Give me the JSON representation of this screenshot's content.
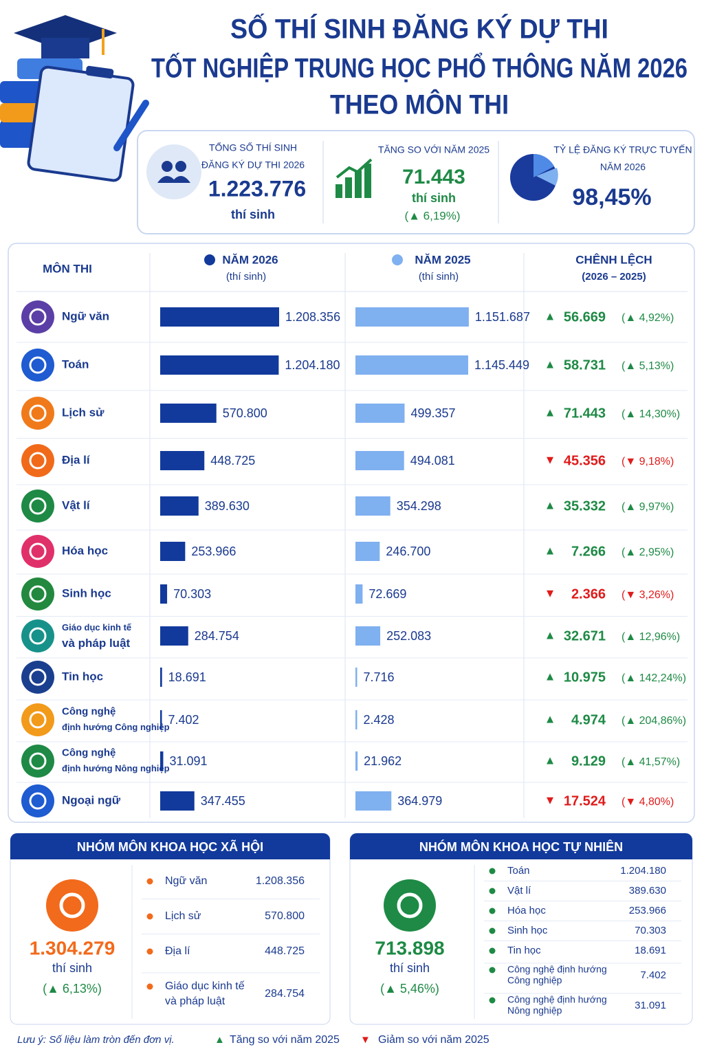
{
  "header": {
    "title": [
      "SỐ THÍ SINH ĐĂNG KÝ DỰ THI",
      "TỐT NGHIỆP TRUNG HỌC PHỔ THÔNG NĂM 2026",
      "THEO MÔN THI"
    ]
  },
  "summary": {
    "total": {
      "label": [
        "TỔNG SỐ THÍ SINH",
        "ĐĂNG KÝ DỰ THI 2026"
      ],
      "value": "1.223.776",
      "unit": "thí sinh"
    },
    "increase": {
      "label": "TĂNG SO VỚI NĂM 2025",
      "value": "71.443",
      "unit": "thí sinh",
      "change": "(▲ 6,19%)"
    },
    "online": {
      "label": [
        "TỶ LỆ ĐĂNG KÝ TRỰC TUYẾN",
        "NĂM 2026"
      ],
      "value": "98,45%"
    }
  },
  "table": {
    "columns": [
      {
        "title": "MÔN THI"
      },
      {
        "title": "NĂM 2026",
        "sub": "(thí sinh)",
        "color": "#123a9c"
      },
      {
        "title": "NĂM 2025",
        "sub": "(thí sinh)",
        "color": "#7fb0f0"
      },
      {
        "title": "CHÊNH LỆCH",
        "sub": "(2026 – 2025)"
      }
    ],
    "rows": [
      {
        "subject": [
          "Ngữ văn"
        ],
        "color": "#5b3fa6",
        "y2026": {
          "value": 1208356,
          "label": "1.208.356"
        },
        "y2025": {
          "value": 1151687,
          "label": "1.151.687"
        },
        "arrow": "▲",
        "diff": "56.669",
        "pct": "(▲ 4,92%)",
        "trend": "up"
      },
      {
        "subject": [
          "Toán"
        ],
        "color": "#1f5bd1",
        "y2026": {
          "value": 1204180,
          "label": "1.204.180"
        },
        "y2025": {
          "value": 1145449,
          "label": "1.145.449"
        },
        "arrow": "▲",
        "diff": "58.731",
        "pct": "(▲ 5,13%)",
        "trend": "up"
      },
      {
        "subject": [
          "Lịch sử"
        ],
        "color": "#f07a1a",
        "y2026": {
          "value": 570800,
          "label": "570.800"
        },
        "y2025": {
          "value": 499357,
          "label": "499.357"
        },
        "arrow": "▲",
        "diff": "71.443",
        "pct": "(▲ 14,30%)",
        "trend": "up"
      },
      {
        "subject": [
          "Địa lí"
        ],
        "color": "#f06a1a",
        "y2026": {
          "value": 448725,
          "label": "448.725"
        },
        "y2025": {
          "value": 494081,
          "label": "494.081"
        },
        "arrow": "▼",
        "diff": "45.356",
        "pct": "(▼ 9,18%)",
        "trend": "down"
      },
      {
        "subject": [
          "Vật lí"
        ],
        "color": "#1e8a45",
        "y2026": {
          "value": 389630,
          "label": "389.630"
        },
        "y2025": {
          "value": 354298,
          "label": "354.298"
        },
        "arrow": "▲",
        "diff": "35.332",
        "pct": "(▲ 9,97%)",
        "trend": "up"
      },
      {
        "subject": [
          "Hóa học"
        ],
        "color": "#e0306a",
        "y2026": {
          "value": 253966,
          "label": "253.966"
        },
        "y2025": {
          "value": 246700,
          "label": "246.700"
        },
        "arrow": "▲",
        "diff": "7.266",
        "pct": "(▲ 2,95%)",
        "trend": "up"
      },
      {
        "subject": [
          "Sinh học"
        ],
        "color": "#22893f",
        "y2026": {
          "value": 70303,
          "label": "70.303"
        },
        "y2025": {
          "value": 72669,
          "label": "72.669"
        },
        "arrow": "▼",
        "diff": "2.366",
        "pct": "(▼ 3,26%)",
        "trend": "down"
      },
      {
        "subject": [
          "Giáo dục kinh tế",
          "và pháp luật"
        ],
        "color": "#17928a",
        "y2026": {
          "value": 284754,
          "label": "284.754"
        },
        "y2025": {
          "value": 252083,
          "label": "252.083"
        },
        "arrow": "▲",
        "diff": "32.671",
        "pct": "(▲ 12,96%)",
        "trend": "up"
      },
      {
        "subject": [
          "Tin học"
        ],
        "color": "#1b3f8f",
        "y2026": {
          "value": 18691,
          "label": "18.691"
        },
        "y2025": {
          "value": 7716,
          "label": "7.716"
        },
        "arrow": "▲",
        "diff": "10.975",
        "pct": "(▲ 142,24%)",
        "trend": "up"
      },
      {
        "subject": [
          "Công nghệ",
          "định hướng Công nghiệp"
        ],
        "color": "#f29a1a",
        "y2026": {
          "value": 7402,
          "label": "7.402"
        },
        "y2025": {
          "value": 2428,
          "label": "2.428"
        },
        "arrow": "▲",
        "diff": "4.974",
        "pct": "(▲ 204,86%)",
        "trend": "up"
      },
      {
        "subject": [
          "Công nghệ",
          "định hướng Nông nghiệp"
        ],
        "color": "#1e8a45",
        "y2026": {
          "value": 31091,
          "label": "31.091"
        },
        "y2025": {
          "value": 21962,
          "label": "21.962"
        },
        "arrow": "▲",
        "diff": "9.129",
        "pct": "(▲ 41,57%)",
        "trend": "up"
      },
      {
        "subject": [
          "Ngoại ngữ"
        ],
        "color": "#1f5bd1",
        "y2026": {
          "value": 347455,
          "label": "347.455"
        },
        "y2025": {
          "value": 364979,
          "label": "364.979"
        },
        "arrow": "▼",
        "diff": "17.524",
        "pct": "(▼ 4,80%)",
        "trend": "down"
      }
    ]
  },
  "groups": [
    {
      "title": "NHÓM MÔN KHOA HỌC XÃ HỘI",
      "total": "1.304.279",
      "unit": "thí sinh",
      "change": "(▲ 6,13%)",
      "color": "#f26a1b",
      "items": [
        {
          "name": [
            "Ngữ văn"
          ],
          "value": "1.208.356"
        },
        {
          "name": [
            "Lịch sử"
          ],
          "value": "570.800"
        },
        {
          "name": [
            "Địa lí"
          ],
          "value": "448.725"
        },
        {
          "name": [
            "Giáo dục kinh tế",
            "và pháp luật"
          ],
          "value": "284.754"
        }
      ]
    },
    {
      "title": "NHÓM MÔN KHOA HỌC TỰ NHIÊN",
      "total": "713.898",
      "unit": "thí sinh",
      "change": "(▲ 5,46%)",
      "color": "#1e8a45",
      "items": [
        {
          "name": [
            "Toán"
          ],
          "value": "1.204.180"
        },
        {
          "name": [
            "Vật lí"
          ],
          "value": "389.630"
        },
        {
          "name": [
            "Hóa học"
          ],
          "value": "253.966"
        },
        {
          "name": [
            "Sinh học"
          ],
          "value": "70.303"
        },
        {
          "name": [
            "Tin học"
          ],
          "value": "18.691"
        },
        {
          "name": [
            "Công nghệ định hướng",
            "Công nghiệp"
          ],
          "value": "7.402"
        },
        {
          "name": [
            "Công nghệ định hướng",
            "Nông nghiệp"
          ],
          "value": "31.091"
        }
      ]
    }
  ],
  "footer": {
    "note": "Lưu ý: Số liệu làm tròn đến đơn vị.",
    "legend": [
      {
        "symbol": "▲",
        "label": "Tăng so với năm 2025",
        "trend": "up"
      },
      {
        "symbol": "▼",
        "label": "Giảm so với năm 2025",
        "trend": "down"
      }
    ]
  }
}
